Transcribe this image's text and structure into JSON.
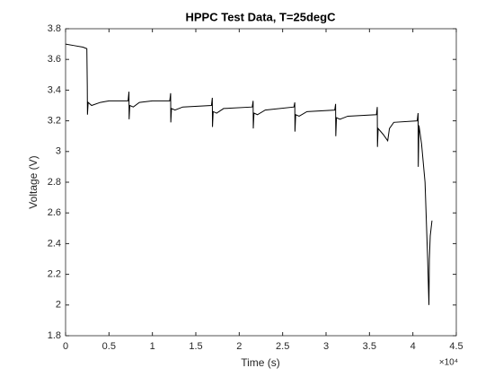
{
  "chart_data": {
    "type": "line",
    "title": "HPPC Test Data, T=25degC",
    "x_label": "Time (s)",
    "y_label": "Voltage (V)",
    "x_exponent": "×10⁴",
    "xlim": [
      0,
      4.5
    ],
    "ylim": [
      1.8,
      3.8
    ],
    "xticks": [
      0,
      0.5,
      1,
      1.5,
      2,
      2.5,
      3,
      3.5,
      4,
      4.5
    ],
    "yticks": [
      1.8,
      2,
      2.2,
      2.4,
      2.6,
      2.8,
      3,
      3.2,
      3.4,
      3.6,
      3.8
    ],
    "grid": false,
    "color": "#000000",
    "x": [
      0,
      0.1,
      0.2,
      0.245,
      0.25,
      0.252,
      0.26,
      0.3,
      0.4,
      0.5,
      0.72,
      0.73,
      0.732,
      0.74,
      0.78,
      0.85,
      1.0,
      1.2,
      1.21,
      1.212,
      1.22,
      1.26,
      1.35,
      1.68,
      1.69,
      1.692,
      1.7,
      1.74,
      1.82,
      2.15,
      2.16,
      2.162,
      2.17,
      2.21,
      2.3,
      2.63,
      2.64,
      2.642,
      2.65,
      2.69,
      2.78,
      3.1,
      3.11,
      3.112,
      3.12,
      3.16,
      3.25,
      3.58,
      3.59,
      3.592,
      3.6,
      3.66,
      3.71,
      3.73,
      3.78,
      4.05,
      4.06,
      4.062,
      4.07,
      4.1,
      4.14,
      4.17,
      4.185,
      4.19,
      4.2,
      4.22
    ],
    "values": [
      3.7,
      3.69,
      3.68,
      3.67,
      3.43,
      3.24,
      3.32,
      3.3,
      3.32,
      3.33,
      3.33,
      3.39,
      3.21,
      3.3,
      3.29,
      3.32,
      3.33,
      3.33,
      3.38,
      3.19,
      3.28,
      3.27,
      3.29,
      3.3,
      3.35,
      3.16,
      3.26,
      3.25,
      3.28,
      3.29,
      3.33,
      3.15,
      3.25,
      3.24,
      3.27,
      3.29,
      3.32,
      3.13,
      3.24,
      3.23,
      3.26,
      3.27,
      3.31,
      3.1,
      3.22,
      3.21,
      3.23,
      3.24,
      3.29,
      3.03,
      3.15,
      3.11,
      3.07,
      3.15,
      3.19,
      3.2,
      3.25,
      2.9,
      3.17,
      3.05,
      2.8,
      2.3,
      2.0,
      2.3,
      2.45,
      2.55
    ]
  }
}
